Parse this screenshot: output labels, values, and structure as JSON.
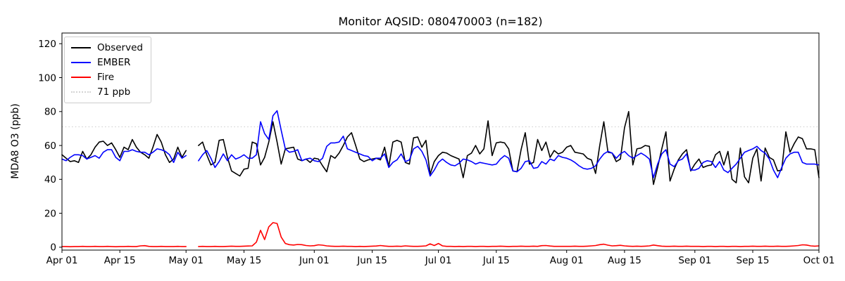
{
  "chart_data": {
    "type": "line",
    "title": "Monitor AQSID: 080470003 (n=182)",
    "xlabel": "",
    "ylabel": "MDA8 O3 (ppb)",
    "n_points": 182,
    "x_unit": "day index from Apr 01",
    "x_range_days": 183,
    "ylim": [
      -1.7,
      126.3
    ],
    "grid": false,
    "legend_position": "upper left",
    "background_color": "#ffffff",
    "axis_color": "#000000",
    "x_ticks": [
      {
        "day": 0,
        "label": "Apr 01"
      },
      {
        "day": 14,
        "label": "Apr 15"
      },
      {
        "day": 30,
        "label": "May 01"
      },
      {
        "day": 44,
        "label": "May 15"
      },
      {
        "day": 61,
        "label": "Jun 01"
      },
      {
        "day": 75,
        "label": "Jun 15"
      },
      {
        "day": 91,
        "label": "Jul 01"
      },
      {
        "day": 105,
        "label": "Jul 15"
      },
      {
        "day": 122,
        "label": "Aug 01"
      },
      {
        "day": 136,
        "label": "Aug 15"
      },
      {
        "day": 153,
        "label": "Sep 01"
      },
      {
        "day": 167,
        "label": "Sep 15"
      },
      {
        "day": 183,
        "label": "Oct 01"
      }
    ],
    "y_ticks": [
      0,
      20,
      40,
      60,
      80,
      100,
      120
    ],
    "threshold": {
      "label": "71 ppb",
      "value": 71,
      "color": "#d3d3d3",
      "style": "dotted"
    },
    "series": [
      {
        "name": "Observed",
        "color": "#000000",
        "values": [
          54.5,
          52.5,
          50.5,
          51,
          50,
          56.5,
          52,
          54.5,
          59,
          62,
          62.5,
          60,
          61.5,
          57.5,
          53,
          59,
          57.5,
          63.5,
          59,
          56,
          54.5,
          52.5,
          59,
          66.5,
          62,
          54.5,
          50,
          52,
          59,
          53,
          57,
          null,
          null,
          60,
          62,
          54.5,
          48.5,
          50,
          63,
          63.5,
          53,
          45,
          43.5,
          42,
          46,
          46.5,
          62,
          61,
          48.5,
          53,
          62,
          74,
          62,
          49,
          58,
          58.5,
          59,
          52,
          51,
          52,
          50,
          52.5,
          52,
          48,
          44.5,
          54,
          52.5,
          55.5,
          60,
          65,
          67.5,
          60,
          52,
          50.5,
          51.5,
          52,
          52.5,
          51.5,
          59,
          47.5,
          62,
          63,
          62,
          50,
          49,
          64.5,
          65,
          59,
          63,
          43,
          50.5,
          54,
          56,
          55.5,
          54,
          53,
          52,
          41,
          54,
          55.5,
          60,
          55,
          58,
          74.5,
          54,
          61.5,
          62,
          61.5,
          58,
          45,
          44.5,
          57.5,
          67.5,
          49,
          50,
          63.5,
          57,
          62,
          53,
          57,
          55,
          56,
          59,
          60,
          56,
          55.5,
          55,
          52.5,
          51.5,
          43.5,
          60,
          74,
          56,
          55.5,
          50.5,
          52,
          70.5,
          80,
          48.5,
          58,
          58.5,
          60,
          59.5,
          37,
          47,
          58,
          68,
          39,
          46,
          51.5,
          55,
          57.5,
          45,
          49,
          52,
          47,
          48,
          48.5,
          54.5,
          56.5,
          48.5,
          56.5,
          40,
          38,
          58.5,
          41.5,
          38,
          52.5,
          58,
          39,
          58.5,
          53,
          51.5,
          45,
          45.5,
          68,
          56,
          61,
          65,
          64,
          58,
          58,
          57.5,
          41
        ]
      },
      {
        "name": "EMBER",
        "color": "#0000ff",
        "values": [
          52,
          51,
          53,
          54.5,
          54.5,
          54,
          52,
          53,
          54,
          52.5,
          56,
          57.5,
          57.5,
          53,
          51,
          56.5,
          56.5,
          57.5,
          56.5,
          56,
          56,
          54.5,
          56,
          58,
          57.5,
          56.5,
          54.5,
          50,
          56,
          52.5,
          54,
          null,
          null,
          51,
          54.5,
          57,
          52.5,
          47,
          50.5,
          55,
          51,
          54.5,
          52,
          53,
          54.5,
          52.5,
          52.5,
          54.5,
          74,
          67,
          63.5,
          77.5,
          80.5,
          69,
          58,
          56,
          56.5,
          57.5,
          51,
          52,
          52.5,
          51,
          50.5,
          52.5,
          59.5,
          61.5,
          61.5,
          62,
          65.5,
          58,
          57,
          56,
          55,
          54,
          53.5,
          51,
          52.5,
          52.5,
          55,
          47,
          50,
          51.5,
          55,
          50.5,
          51.5,
          58,
          59.5,
          56.5,
          51.5,
          42,
          45.5,
          50,
          52,
          50,
          48.5,
          48,
          49.5,
          52,
          51.5,
          50.5,
          49,
          50,
          49.5,
          49,
          48.5,
          49,
          52,
          54,
          52.5,
          45,
          44.5,
          46.5,
          50.5,
          51,
          46.5,
          47,
          50.5,
          49,
          52,
          51,
          54,
          53,
          52.5,
          51.5,
          50,
          48,
          46.5,
          46,
          46.5,
          48,
          52,
          55,
          56.5,
          55.5,
          52.5,
          55,
          56.5,
          54,
          52.5,
          54,
          55.5,
          54,
          52,
          41,
          49,
          55,
          57.5,
          49,
          47.5,
          51,
          52,
          55,
          45.5,
          45.5,
          46.5,
          50,
          51,
          50.5,
          47,
          50.5,
          45.5,
          44,
          46.5,
          49,
          52.5,
          56,
          57,
          58,
          59.5,
          57,
          55.5,
          52,
          45.5,
          41,
          47,
          52.5,
          55,
          56,
          56,
          50,
          49,
          49,
          49,
          48.5
        ]
      },
      {
        "name": "Fire",
        "color": "#ff0000",
        "values": [
          0.4,
          0.4,
          0.3,
          0.4,
          0.4,
          0.5,
          0.4,
          0.4,
          0.5,
          0.4,
          0.4,
          0.5,
          0.4,
          0.3,
          0.4,
          0.4,
          0.5,
          0.4,
          0.4,
          0.8,
          0.9,
          0.5,
          0.4,
          0.4,
          0.5,
          0.4,
          0.4,
          0.4,
          0.5,
          0.4,
          0.4,
          null,
          null,
          0.4,
          0.5,
          0.4,
          0.4,
          0.5,
          0.4,
          0.4,
          0.5,
          0.6,
          0.5,
          0.5,
          0.6,
          0.7,
          0.8,
          3,
          10,
          4.5,
          12,
          14.5,
          14,
          6,
          2.2,
          1.5,
          1.3,
          1.6,
          1.5,
          1,
          0.8,
          0.9,
          1.4,
          1.2,
          0.8,
          0.6,
          0.5,
          0.5,
          0.6,
          0.5,
          0.5,
          0.4,
          0.5,
          0.4,
          0.5,
          0.6,
          0.7,
          1,
          0.7,
          0.5,
          0.5,
          0.6,
          0.5,
          0.8,
          0.6,
          0.5,
          0.5,
          0.6,
          0.8,
          2,
          1,
          2.2,
          0.8,
          0.5,
          0.5,
          0.4,
          0.5,
          0.4,
          0.5,
          0.5,
          0.4,
          0.5,
          0.5,
          0.4,
          0.5,
          0.5,
          0.6,
          0.5,
          0.4,
          0.5,
          0.5,
          0.6,
          0.5,
          0.5,
          0.6,
          0.5,
          0.9,
          1,
          0.7,
          0.5,
          0.5,
          0.5,
          0.5,
          0.5,
          0.6,
          0.5,
          0.5,
          0.6,
          0.8,
          1,
          1.5,
          1.8,
          1.2,
          0.8,
          0.9,
          1.1,
          0.8,
          0.6,
          0.5,
          0.6,
          0.5,
          0.6,
          0.8,
          1.3,
          0.9,
          0.6,
          0.5,
          0.5,
          0.6,
          0.5,
          0.5,
          0.6,
          0.5,
          0.5,
          0.5,
          0.4,
          0.5,
          0.5,
          0.4,
          0.5,
          0.5,
          0.4,
          0.5,
          0.5,
          0.4,
          0.5,
          0.5,
          0.6,
          0.5,
          0.5,
          0.6,
          0.5,
          0.5,
          0.6,
          0.5,
          0.5,
          0.6,
          0.8,
          1,
          1.4,
          1.3,
          0.8,
          0.6,
          0.8
        ]
      }
    ]
  }
}
